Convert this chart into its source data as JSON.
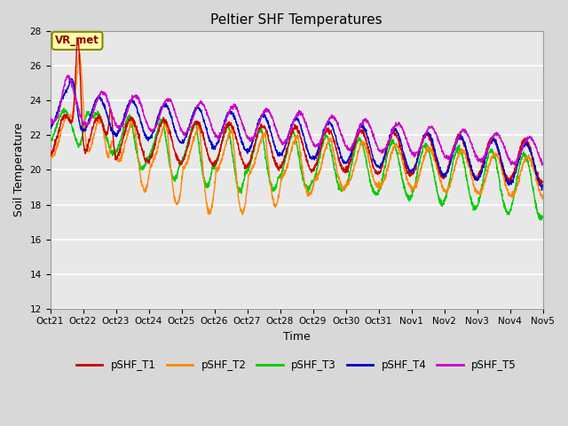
{
  "title": "Peltier SHF Temperatures",
  "xlabel": "Time",
  "ylabel": "Soil Temperature",
  "ylim": [
    12,
    28
  ],
  "yticks": [
    12,
    14,
    16,
    18,
    20,
    22,
    24,
    26,
    28
  ],
  "xtick_labels": [
    "Oct 21",
    "Oct 22",
    "Oct 23",
    "Oct 24",
    "Oct 25",
    "Oct 26",
    "Oct 27",
    "Oct 28",
    "Oct 29",
    "Oct 30",
    "Oct 31",
    "Nov 1",
    "Nov 2",
    "Nov 3",
    "Nov 4",
    "Nov 5"
  ],
  "colors": {
    "pSHF_T1": "#cc0000",
    "pSHF_T2": "#ff8800",
    "pSHF_T3": "#00cc00",
    "pSHF_T4": "#0000cc",
    "pSHF_T5": "#cc00cc"
  },
  "legend_label": "VR_met",
  "background_color": "#d8d8d8",
  "plot_bg_color": "#e8e8e8",
  "title_fontsize": 11,
  "axis_fontsize": 9,
  "tick_fontsize": 7.5
}
